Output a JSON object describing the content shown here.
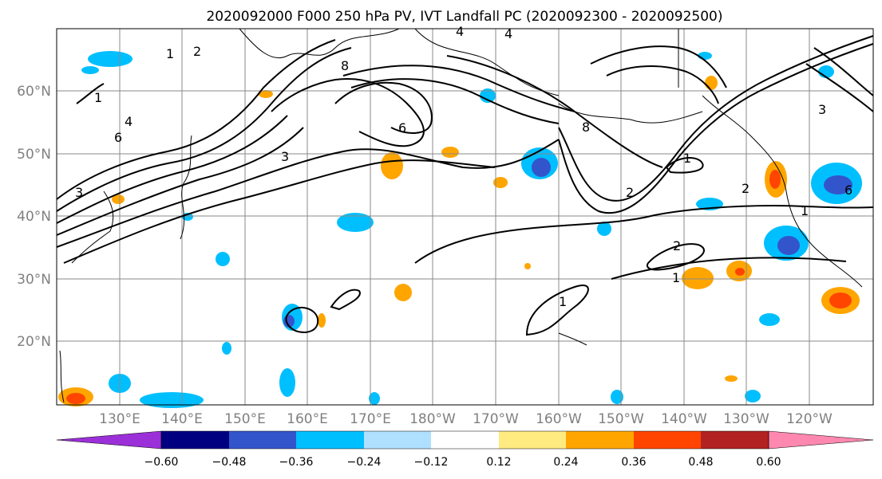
{
  "title": "2020092000 F000 250 hPa PV, IVT Landfall PC (2020092300 - 2020092500)",
  "lat_labels": [
    "60°N",
    "50°N",
    "40°N",
    "30°N",
    "20°N"
  ],
  "lon_labels": [
    "130°E",
    "140°E",
    "150°E",
    "160°E",
    "170°E",
    "180°W",
    "170°W",
    "160°W",
    "150°W",
    "140°W",
    "130°W",
    "120°W"
  ],
  "colorbar": {
    "ticks": [
      "−0.60",
      "−0.48",
      "−0.36",
      "−0.24",
      "−0.12",
      "0.12",
      "0.24",
      "0.36",
      "0.48",
      "0.60"
    ],
    "colors": [
      "#9b30d9",
      "#000080",
      "#3355cc",
      "#00bfff",
      "#b0e0ff",
      "#ffffff",
      "#ffeb80",
      "#ffa500",
      "#ff4500",
      "#b22222",
      "#ff88b0"
    ]
  },
  "contour_labels": [
    "1",
    "2",
    "3",
    "4",
    "6",
    "8",
    "1",
    "2",
    "3",
    "4",
    "6",
    "8",
    "1",
    "2",
    "1",
    "1",
    "1",
    "2",
    "3",
    "4",
    "6"
  ]
}
